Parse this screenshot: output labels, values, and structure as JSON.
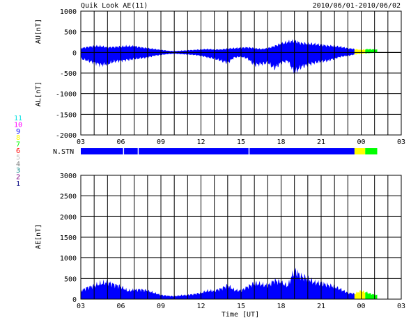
{
  "header": {
    "title": "Quik Look AE(11)",
    "date_range": "2010/06/01-2010/06/02"
  },
  "station_legend": [
    {
      "label": "11",
      "color": "#00e0e0"
    },
    {
      "label": "10",
      "color": "#ff00ff"
    },
    {
      "label": "9",
      "color": "#0000ff"
    },
    {
      "label": "8",
      "color": "#ffff00"
    },
    {
      "label": "7",
      "color": "#00ff00"
    },
    {
      "label": "6",
      "color": "#ff0000"
    },
    {
      "label": "5",
      "color": "#c0c0c0"
    },
    {
      "label": "4",
      "color": "#808080"
    },
    {
      "label": "3",
      "color": "#008080"
    },
    {
      "label": "2",
      "color": "#800080"
    },
    {
      "label": "1",
      "color": "#000080"
    }
  ],
  "colors": {
    "fill_main": "#0000ff",
    "fill_recent": "#ffff00",
    "fill_latest": "#00ff00",
    "gap": "#ffffff"
  },
  "chart_data": [
    {
      "type": "area",
      "panel": "AU/AL",
      "ylabel_top": "AU[nT]",
      "ylabel_bottom": "AL[nT]",
      "ylim": [
        -2000,
        1000
      ],
      "yticks": [
        1000,
        500,
        0,
        -500,
        -1000,
        -1500,
        -2000
      ],
      "xlim": [
        3,
        27
      ],
      "xtick_labels": [
        "03",
        "06",
        "09",
        "12",
        "15",
        "18",
        "21",
        "00",
        "03"
      ],
      "grid": true,
      "x_hours": [
        3,
        3.5,
        4,
        4.5,
        5,
        5.5,
        6,
        6.5,
        7,
        7.5,
        8,
        8.5,
        9,
        9.5,
        10,
        10.5,
        11,
        11.5,
        12,
        12.5,
        13,
        13.5,
        14,
        14.5,
        15,
        15.5,
        16,
        16.5,
        17,
        17.5,
        18,
        18.5,
        19,
        19.5,
        20,
        20.5,
        21,
        21.5,
        22,
        22.5,
        23,
        23.5,
        24,
        24.5,
        25
      ],
      "au": [
        100,
        130,
        150,
        150,
        120,
        130,
        140,
        150,
        150,
        120,
        100,
        80,
        60,
        40,
        30,
        40,
        50,
        60,
        70,
        80,
        70,
        70,
        90,
        100,
        110,
        120,
        100,
        80,
        100,
        150,
        210,
        250,
        280,
        220,
        210,
        200,
        180,
        160,
        150,
        130,
        100,
        80,
        60,
        80,
        70
      ],
      "al": [
        -150,
        -200,
        -250,
        -300,
        -280,
        -220,
        -200,
        -180,
        -160,
        -140,
        -120,
        -80,
        -60,
        -40,
        -30,
        -40,
        -50,
        -60,
        -80,
        -120,
        -150,
        -200,
        -250,
        -120,
        -100,
        -150,
        -300,
        -280,
        -250,
        -380,
        -250,
        -200,
        -480,
        -350,
        -300,
        -250,
        -220,
        -200,
        -150,
        -100,
        -80,
        -50,
        -30,
        -20,
        -10
      ],
      "segments": [
        {
          "from": 3,
          "to": 23.5,
          "color": "blue"
        },
        {
          "from": 23.5,
          "to": 24.3,
          "color": "yellow"
        },
        {
          "from": 24.3,
          "to": 25.2,
          "color": "green"
        }
      ]
    },
    {
      "type": "bar",
      "panel": "station-count",
      "ylabel": "N.STN",
      "segments": [
        {
          "from": 3,
          "to": 23.5,
          "color": "blue"
        },
        {
          "from": 23.5,
          "to": 24.3,
          "color": "yellow"
        },
        {
          "from": 24.3,
          "to": 25.2,
          "color": "green"
        }
      ],
      "gaps": [
        6.2,
        7.3,
        15.6
      ]
    },
    {
      "type": "area",
      "panel": "AE",
      "ylabel": "AE[nT]",
      "xlabel": "Time [UT]",
      "ylim": [
        0,
        3000
      ],
      "yticks": [
        3000,
        2500,
        2000,
        1500,
        1000,
        500,
        0
      ],
      "xlim": [
        3,
        27
      ],
      "xtick_labels": [
        "03",
        "06",
        "09",
        "12",
        "15",
        "18",
        "21",
        "00",
        "03"
      ],
      "grid": true,
      "x_hours": [
        3,
        3.5,
        4,
        4.5,
        5,
        5.5,
        6,
        6.5,
        7,
        7.5,
        8,
        8.5,
        9,
        9.5,
        10,
        10.5,
        11,
        11.5,
        12,
        12.5,
        13,
        13.5,
        14,
        14.5,
        15,
        15.5,
        16,
        16.5,
        17,
        17.5,
        18,
        18.5,
        19,
        19.5,
        20,
        20.5,
        21,
        21.5,
        22,
        22.5,
        23,
        23.5,
        24,
        24.5,
        25
      ],
      "values": [
        200,
        280,
        320,
        380,
        400,
        350,
        300,
        200,
        220,
        230,
        200,
        150,
        100,
        80,
        70,
        90,
        100,
        120,
        150,
        200,
        200,
        250,
        330,
        220,
        200,
        300,
        380,
        360,
        320,
        450,
        400,
        320,
        700,
        550,
        500,
        400,
        380,
        340,
        300,
        230,
        150,
        130,
        200,
        150,
        100
      ],
      "segments": [
        {
          "from": 3,
          "to": 23.5,
          "color": "blue"
        },
        {
          "from": 23.5,
          "to": 24.3,
          "color": "yellow"
        },
        {
          "from": 24.3,
          "to": 25.2,
          "color": "green"
        }
      ]
    }
  ]
}
